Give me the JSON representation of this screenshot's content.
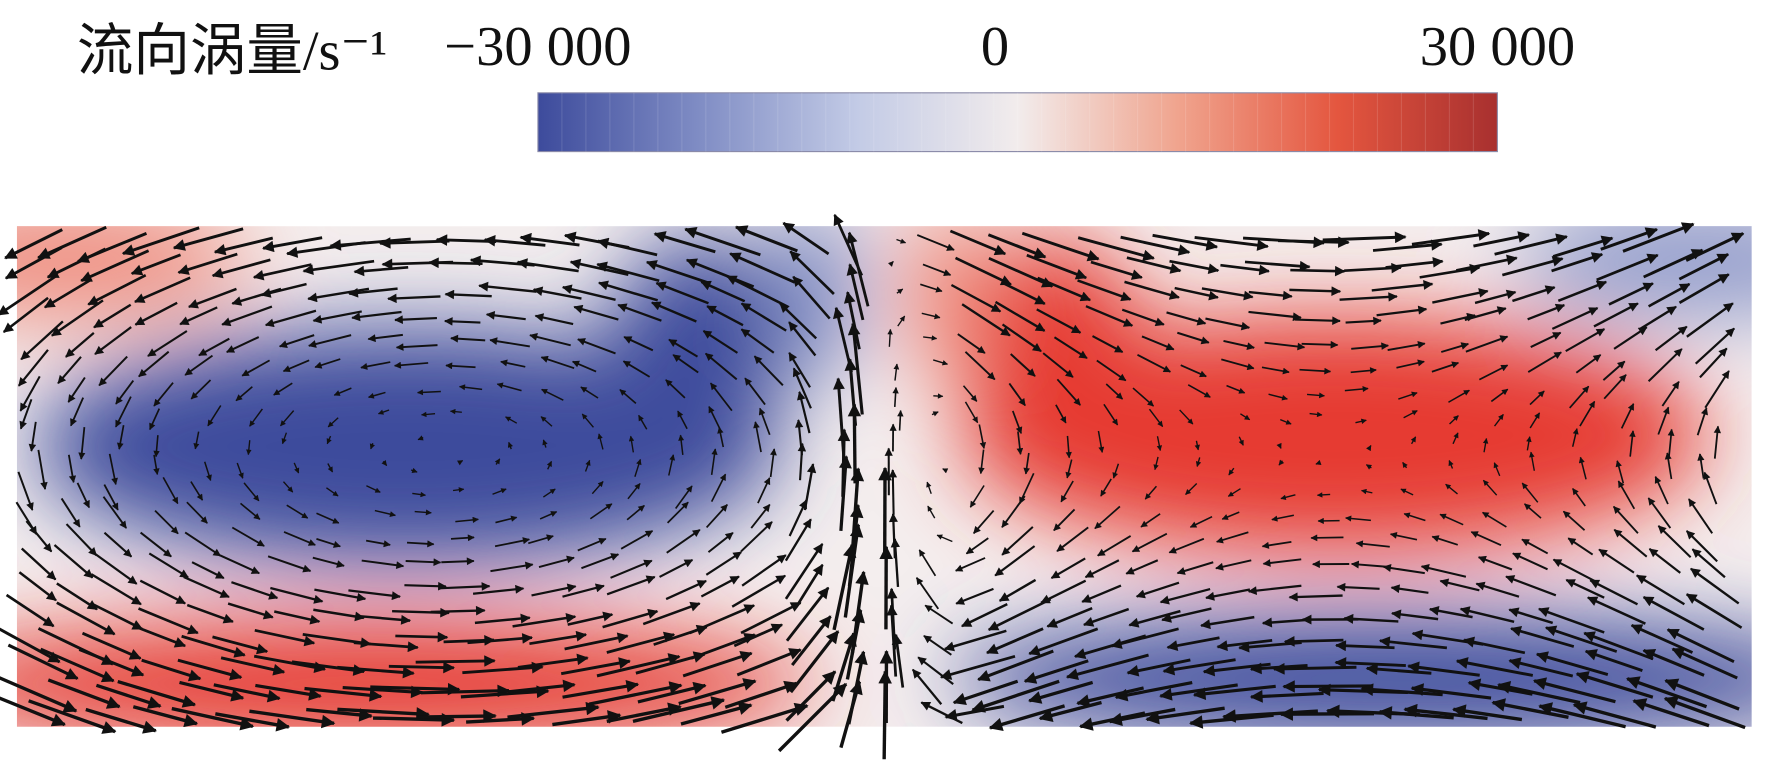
{
  "chart_data": {
    "type": "vector-contour",
    "colorbar": {
      "label": "流向涡量/s⁻¹",
      "clim": [
        -30000,
        30000
      ],
      "ticks": [
        {
          "value": -30000,
          "label": "−30 000"
        },
        0,
        {
          "value": 30000,
          "label": "30 000"
        }
      ],
      "colormap": [
        "#3d4b9c",
        "#7f8cc4",
        "#c3cbe6",
        "#f2ecec",
        "#f0a48e",
        "#e4563f",
        "#a8302f"
      ]
    }
  }
}
